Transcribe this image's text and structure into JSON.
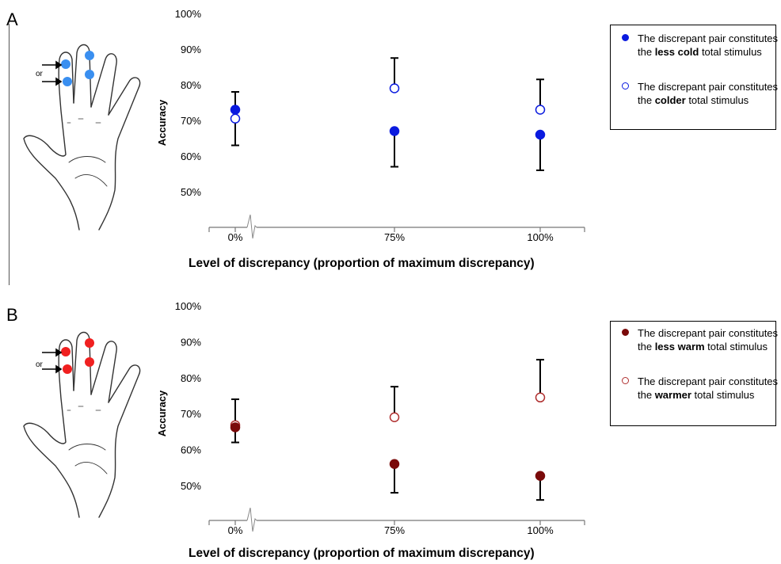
{
  "panels": [
    {
      "letter": "A",
      "hand_label": "or",
      "dot_color": "#3a8ff0",
      "legend": [
        {
          "prefix": "The discrepant pair constitutes the ",
          "bold": "less cold",
          "suffix": " total stimulus",
          "filled": true
        },
        {
          "prefix": "The discrepant pair constitutes the ",
          "bold": "colder",
          "suffix": " total stimulus",
          "filled": false
        }
      ]
    },
    {
      "letter": "B",
      "hand_label": "or",
      "dot_color": "#f02020",
      "legend": [
        {
          "prefix": "The discrepant pair constitutes the ",
          "bold": "less warm",
          "suffix": " total stimulus",
          "filled": true
        },
        {
          "prefix": "The discrepant pair constitutes the ",
          "bold": "warmer",
          "suffix": " total stimulus",
          "filled": false
        }
      ]
    }
  ],
  "chart_data": [
    {
      "type": "scatter",
      "ylabel": "Accuracy",
      "xlabel": "Level of discrepancy (proportion of maximum discrepancy)",
      "categories": [
        "0%",
        "75%",
        "100%"
      ],
      "yticks": [
        "100%",
        "90%",
        "80%",
        "70%",
        "60%",
        "50%"
      ],
      "ylim": [
        40,
        100
      ],
      "axis_break": true,
      "color": "#0a1adf",
      "series": [
        {
          "name": "The discrepant pair constitutes the less cold total stimulus",
          "filled": true,
          "values": [
            73,
            67,
            66
          ],
          "err_low": [
            null,
            57,
            56
          ],
          "err_high": [
            78,
            null,
            null
          ]
        },
        {
          "name": "The discrepant pair constitutes the colder total stimulus",
          "filled": false,
          "values": [
            70.5,
            79,
            73
          ],
          "err_low": [
            63,
            null,
            null
          ],
          "err_high": [
            null,
            87.5,
            81.5
          ]
        }
      ]
    },
    {
      "type": "scatter",
      "ylabel": "Accuracy",
      "xlabel": "Level of discrepancy (proportion of maximum discrepancy)",
      "categories": [
        "0%",
        "75%",
        "100%"
      ],
      "yticks": [
        "100%",
        "90%",
        "80%",
        "70%",
        "60%",
        "50%"
      ],
      "ylim": [
        40,
        100
      ],
      "axis_break": true,
      "color": "#7a0a0a",
      "series": [
        {
          "name": "The discrepant pair constitutes the less warm total stimulus",
          "filled": true,
          "values": [
            66.2,
            56,
            52.7
          ],
          "err_low": [
            62,
            48,
            46
          ],
          "err_high": [
            null,
            null,
            null
          ]
        },
        {
          "name": "The discrepant pair constitutes the warmer total stimulus",
          "filled": false,
          "values": [
            66.8,
            69,
            74.5
          ],
          "err_low": [
            null,
            null,
            null
          ],
          "err_high": [
            74,
            77.5,
            85
          ]
        }
      ]
    }
  ]
}
